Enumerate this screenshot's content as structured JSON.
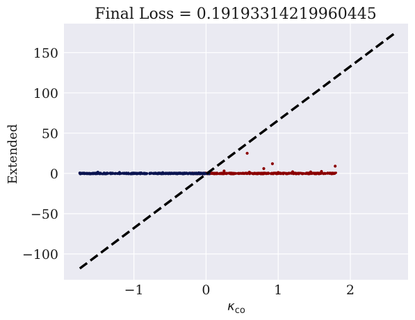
{
  "chart_data": {
    "type": "scatter",
    "title": "Final Loss = 0.19193314219960445",
    "xlabel_main": "κ",
    "xlabel_sub": "co",
    "ylabel": "Extended",
    "xlim": [
      -1.97,
      2.8
    ],
    "ylim": [
      -132,
      186
    ],
    "x_ticks": [
      -1,
      0,
      1,
      2
    ],
    "x_tick_labels": [
      "−1",
      "0",
      "1",
      "2"
    ],
    "y_ticks": [
      -100,
      -50,
      0,
      50,
      100,
      150
    ],
    "y_tick_labels": [
      "−100",
      "−50",
      "0",
      "50",
      "100",
      "150"
    ],
    "grid": true,
    "background_color": "#eaeaf2",
    "grid_color": "#ffffff",
    "series": [
      {
        "color": "#0a1450",
        "x_range": [
          -1.75,
          0.05
        ],
        "points": [
          [
            -1.75,
            0.5
          ],
          [
            -1.5,
            1.5
          ],
          [
            -1.2,
            1.2
          ],
          [
            -0.9,
            0.6
          ],
          [
            -0.6,
            0.9
          ],
          [
            -0.3,
            0.4
          ],
          [
            -0.1,
            0.7
          ]
        ]
      },
      {
        "color": "#8b0000",
        "x_range": [
          -0.2,
          1.8
        ],
        "points": [
          [
            0.57,
            25
          ],
          [
            0.92,
            12
          ],
          [
            0.8,
            6
          ],
          [
            1.79,
            9
          ],
          [
            0.25,
            3
          ],
          [
            1.6,
            2.5
          ],
          [
            1.2,
            2
          ],
          [
            0.6,
            1.5
          ],
          [
            1.0,
            1.2
          ],
          [
            1.45,
            1.8
          ]
        ]
      }
    ],
    "reference_line": {
      "style": "dashed",
      "color": "#000000",
      "x": [
        -1.75,
        2.6
      ],
      "y": [
        -118,
        173
      ]
    }
  }
}
